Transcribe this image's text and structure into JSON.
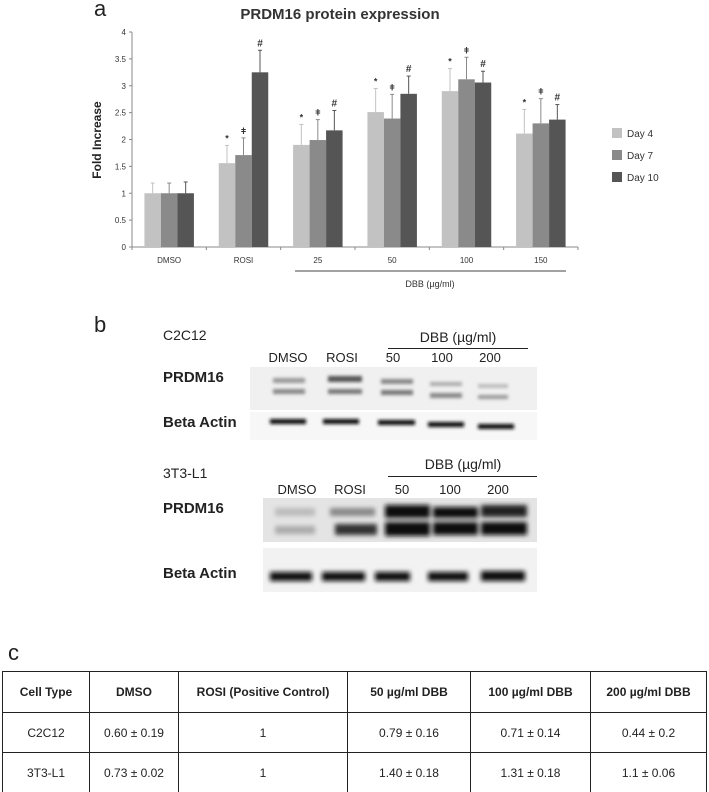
{
  "panels": {
    "a": "a",
    "b": "b",
    "c": "c"
  },
  "chart_data": {
    "type": "bar",
    "title": "PRDM16 protein expression",
    "xlabel": "",
    "ylabel": "Fold Increase",
    "group_label": "DBB (µg/ml)",
    "categories": [
      "DMSO",
      "ROSI",
      "25",
      "50",
      "100",
      "150"
    ],
    "ylim": [
      0,
      4
    ],
    "yticks": [
      "0",
      "0.5",
      "1",
      "1.5",
      "2",
      "2.5",
      "3",
      "3.5",
      "4"
    ],
    "grid": false,
    "legend_position": "right",
    "series": [
      {
        "name": "Day 4",
        "color": "#c2c2c2",
        "values": [
          1.0,
          1.56,
          1.9,
          2.51,
          2.9,
          2.11
        ],
        "errors": [
          0.19,
          0.33,
          0.38,
          0.44,
          0.42,
          0.45
        ],
        "markers": [
          "",
          "*",
          "*",
          "*",
          "*",
          "*"
        ]
      },
      {
        "name": "Day 7",
        "color": "#8a8a8a",
        "values": [
          1.0,
          1.71,
          1.99,
          2.39,
          3.12,
          2.3
        ],
        "errors": [
          0.19,
          0.32,
          0.38,
          0.45,
          0.41,
          0.46
        ],
        "markers": [
          "",
          "ǂ",
          "ǂ",
          "ǂ",
          "ǂ",
          "ǂ"
        ]
      },
      {
        "name": "Day 10",
        "color": "#555555",
        "values": [
          1.0,
          3.25,
          2.17,
          2.85,
          3.06,
          2.37
        ],
        "errors": [
          0.21,
          0.41,
          0.37,
          0.33,
          0.21,
          0.28
        ],
        "markers": [
          "",
          "#",
          "#",
          "#",
          "#",
          "#"
        ]
      }
    ]
  },
  "blots": [
    {
      "cell_line": "C2C12",
      "treatment_label": "DBB (µg/ml)",
      "lanes": [
        "DMSO",
        "ROSI",
        "50",
        "100",
        "200"
      ],
      "proteins": [
        "PRDM16",
        "Beta Actin"
      ]
    },
    {
      "cell_line": "3T3-L1",
      "treatment_label": "DBB (µg/ml)",
      "lanes": [
        "DMSO",
        "ROSI",
        "50",
        "100",
        "200"
      ],
      "proteins": [
        "PRDM16",
        "Beta Actin"
      ]
    }
  ],
  "table": {
    "headers": [
      "Cell Type",
      "DMSO",
      "ROSI (Positive Control)",
      "50 µg/ml DBB",
      "100 µg/ml DBB",
      "200 µg/ml DBB"
    ],
    "rows": [
      [
        "C2C12",
        "0.60 ± 0.19",
        "1",
        "0.79 ± 0.16",
        "0.71 ± 0.14",
        "0.44 ± 0.2"
      ],
      [
        "3T3-L1",
        "0.73 ± 0.02",
        "1",
        "1.40 ± 0.18",
        "1.31 ± 0.18",
        "1.1 ± 0.06"
      ]
    ]
  }
}
